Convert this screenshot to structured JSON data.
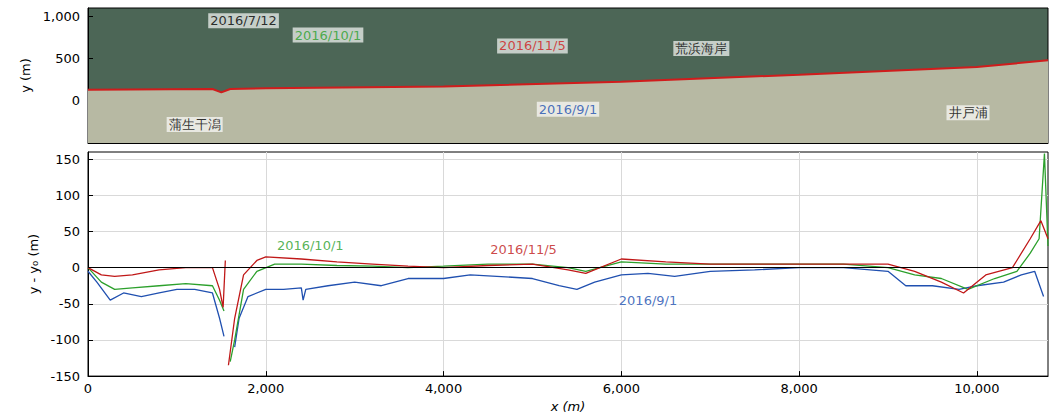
{
  "chart_data": [
    {
      "type": "line",
      "y_label": "y (m)",
      "xlim": [
        0,
        10800
      ],
      "xticks": [
        0,
        2000,
        4000,
        6000,
        8000,
        10000
      ],
      "ylim": [
        -500,
        1100
      ],
      "yticks": [
        0,
        500,
        1000
      ],
      "grid": false,
      "tick_labels": "y",
      "series": [
        {
          "name": "2016/11/5",
          "color": "#d01c1c",
          "x": [
            0,
            1400,
            1500,
            1600,
            2000,
            4000,
            6000,
            8000,
            10000,
            10800
          ],
          "values": [
            130,
            140,
            100,
            140,
            150,
            170,
            225,
            310,
            400,
            480
          ]
        }
      ],
      "annotations": [
        {
          "text": "2016/7/12",
          "color": "#000000",
          "x": 1750,
          "y": 950
        },
        {
          "text": "2016/10/1",
          "color": "#2ca02c",
          "x": 2700,
          "y": 780
        },
        {
          "text": "2016/11/5",
          "color": "#d01c1c",
          "x": 5000,
          "y": 650
        },
        {
          "text": "荒浜海岸",
          "color": "#000000",
          "x": 6900,
          "y": 620
        },
        {
          "text": "蒲生干潟",
          "color": "#000000",
          "x": 1200,
          "y": -280
        },
        {
          "text": "2016/9/1",
          "color": "#2050b0",
          "x": 5400,
          "y": -100
        },
        {
          "text": "井戸浦",
          "color": "#000000",
          "x": 9900,
          "y": -140
        }
      ]
    },
    {
      "type": "line",
      "x_label": "x (m)",
      "y_label": "y - y₀ (m)",
      "xlim": [
        0,
        10800
      ],
      "xticks": [
        0,
        2000,
        4000,
        6000,
        8000,
        10000
      ],
      "ylim": [
        -150,
        160
      ],
      "yticks": [
        -150,
        -100,
        -50,
        0,
        50,
        100,
        150
      ],
      "grid": true,
      "hline": 0,
      "series": [
        {
          "name": "2016/9/1",
          "color": "#2050b0",
          "x": [
            0,
            100,
            250,
            400,
            600,
            800,
            1000,
            1200,
            1400,
            1480,
            1530,
            1600,
            1650,
            1700,
            1800,
            2000,
            2200,
            2400,
            2420,
            2450,
            2700,
            3000,
            3300,
            3600,
            4000,
            4300,
            4600,
            5000,
            5300,
            5500,
            5700,
            6000,
            6300,
            6600,
            7000,
            7500,
            8000,
            8500,
            9000,
            9200,
            9500,
            9800,
            10000,
            10300,
            10500,
            10650,
            10750
          ],
          "values": [
            -5,
            -20,
            -45,
            -35,
            -40,
            -35,
            -30,
            -30,
            -35,
            -70,
            -95,
            null,
            -110,
            -70,
            -40,
            -30,
            -30,
            -28,
            -45,
            -30,
            -25,
            -20,
            -25,
            -15,
            -15,
            -10,
            -12,
            -15,
            -25,
            -30,
            -20,
            -10,
            -8,
            -12,
            -5,
            -3,
            0,
            0,
            -5,
            -25,
            -25,
            -30,
            -25,
            -20,
            -10,
            -5,
            -40
          ]
        },
        {
          "name": "2016/10/1",
          "color": "#2ca02c",
          "x": [
            0,
            150,
            300,
            500,
            800,
            1100,
            1400,
            1480,
            1530,
            1560,
            1600,
            1650,
            1750,
            1900,
            2100,
            2400,
            2800,
            3200,
            3600,
            4000,
            4500,
            5000,
            5400,
            5600,
            6000,
            6500,
            7000,
            7500,
            8000,
            8500,
            9000,
            9300,
            9600,
            9900,
            10200,
            10450,
            10600,
            10700,
            10760,
            10800
          ],
          "values": [
            0,
            -20,
            -30,
            -28,
            -25,
            -22,
            -25,
            -45,
            -60,
            null,
            -130,
            -100,
            -30,
            -5,
            5,
            5,
            3,
            2,
            0,
            2,
            5,
            5,
            0,
            -5,
            8,
            5,
            5,
            5,
            5,
            5,
            0,
            -10,
            -15,
            -30,
            -15,
            -5,
            20,
            40,
            158,
            30
          ]
        },
        {
          "name": "2016/11/5",
          "color": "#c01818",
          "x": [
            0,
            150,
            300,
            500,
            800,
            1100,
            1400,
            1480,
            1520,
            1545,
            1560,
            1580,
            1650,
            1750,
            1900,
            2000,
            2400,
            2800,
            3200,
            3600,
            4000,
            4500,
            5000,
            5400,
            5600,
            6000,
            6500,
            7000,
            7500,
            8000,
            8500,
            9000,
            9300,
            9600,
            9850,
            10100,
            10400,
            10600,
            10720,
            10800
          ],
          "values": [
            0,
            -10,
            -12,
            -10,
            -3,
            0,
            0,
            -30,
            -55,
            10,
            null,
            -135,
            -70,
            -10,
            10,
            15,
            12,
            8,
            5,
            2,
            0,
            3,
            5,
            -3,
            -8,
            12,
            8,
            5,
            5,
            5,
            5,
            5,
            -5,
            -20,
            -35,
            -10,
            0,
            40,
            65,
            40
          ]
        }
      ],
      "annotations": [
        {
          "text": "2016/10/1",
          "color": "#2ca02c",
          "x": 2500,
          "y": 30
        },
        {
          "text": "2016/11/5",
          "color": "#c01818",
          "x": 4900,
          "y": 25
        },
        {
          "text": "2016/9/1",
          "color": "#2050b0",
          "x": 6300,
          "y": -45
        }
      ]
    }
  ]
}
